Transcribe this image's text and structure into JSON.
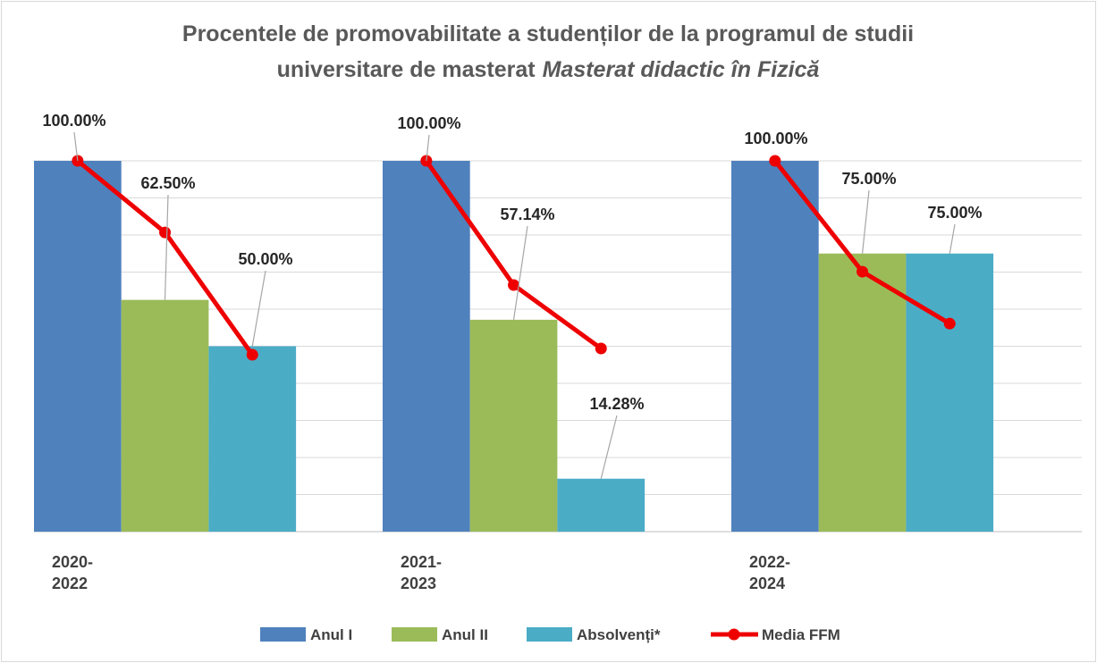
{
  "chart_data": {
    "type": "bar",
    "title": [
      "Procentele de promovabilitate a studenților de la programul de studii",
      "universitare de masterat",
      "Masterat didactic în Fizică"
    ],
    "categories": [
      "2020-\n2022",
      "2021-\n2023",
      "2022-\n2024"
    ],
    "series": [
      {
        "name": "Anul I",
        "color": "#4f81bd",
        "values": [
          100,
          100,
          100
        ],
        "value_labels": [
          "100.00%",
          "100.00%",
          "100.00%"
        ]
      },
      {
        "name": "Anul II",
        "color": "#9bbb59",
        "values": [
          62.5,
          57.14,
          75
        ],
        "value_labels": [
          "62.50%",
          "57.14%",
          "75.00%"
        ]
      },
      {
        "name": "Absolvenți*",
        "color": "#4bacc6",
        "values": [
          50,
          14.28,
          75
        ],
        "value_labels": [
          "50.00%",
          "14.28%",
          "75.00%"
        ]
      },
      {
        "name": "Media FFM",
        "color": "#ee0000",
        "type": "line",
        "values": [
          [
            100,
            80.7,
            47.7
          ],
          [
            100,
            66.5,
            49.4
          ],
          [
            100,
            70.1,
            56.1
          ]
        ]
      }
    ],
    "ylim": [
      0,
      100
    ],
    "yticks": [
      0,
      10,
      20,
      30,
      40,
      50,
      60,
      70,
      80,
      90,
      100
    ],
    "grid": true,
    "legend": "bottom"
  }
}
